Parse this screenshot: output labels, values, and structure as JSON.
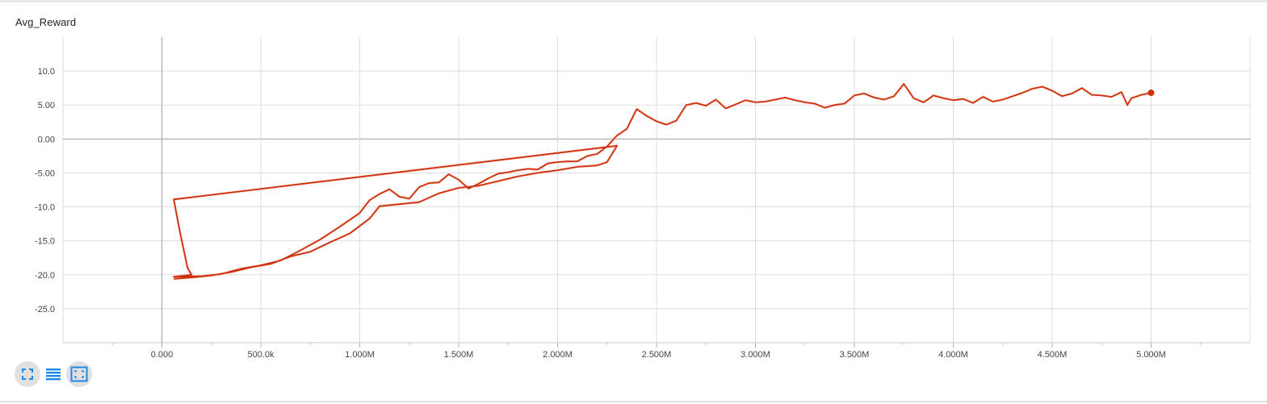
{
  "title": "Avg_Reward",
  "colors": {
    "series": "#d0310d",
    "series_raw": "#f3b6a8",
    "grid": "#dddddd",
    "axis": "#9e9e9e",
    "icon": "#1e88e5"
  },
  "toolbar": {
    "buttons": [
      {
        "name": "expand-chart-button",
        "icon": "fit-screen-icon",
        "active": true
      },
      {
        "name": "toggle-log-scale-button",
        "icon": "lines-icon",
        "active": false
      },
      {
        "name": "fit-domain-button",
        "icon": "fit-domain-icon",
        "active": true
      }
    ]
  },
  "chart_data": {
    "type": "line",
    "title": "Avg_Reward",
    "xlabel": "",
    "ylabel": "",
    "xlim": [
      -500000,
      5500000
    ],
    "ylim": [
      -30,
      15
    ],
    "grid": true,
    "legend": "none",
    "x_ticks": [
      0,
      500000,
      1000000,
      1500000,
      2000000,
      2500000,
      3000000,
      3500000,
      4000000,
      4500000,
      5000000
    ],
    "x_tick_labels": [
      "0.000",
      "500.0k",
      "1.000M",
      "1.500M",
      "2.000M",
      "2.500M",
      "3.000M",
      "3.500M",
      "4.000M",
      "4.500M",
      "5.000M"
    ],
    "y_ticks": [
      10,
      5,
      0,
      -5,
      -10,
      -15,
      -20,
      -25
    ],
    "y_tick_labels": [
      "10.0",
      "5.00",
      "0.00",
      "-5.00",
      "-10.0",
      "-15.0",
      "-20.0",
      "-25.0"
    ],
    "series": [
      {
        "points": [
          [
            60000,
            -20.6
          ],
          [
            150000,
            -20.4
          ],
          [
            250000,
            -20.1
          ],
          [
            350000,
            -19.6
          ],
          [
            450000,
            -18.9
          ],
          [
            550000,
            -18.4
          ],
          [
            650000,
            -17.3
          ],
          [
            750000,
            -16.6
          ],
          [
            850000,
            -15.2
          ],
          [
            950000,
            -13.9
          ],
          [
            1050000,
            -11.7
          ],
          [
            1100000,
            -9.9
          ],
          [
            1200000,
            -9.6
          ],
          [
            1300000,
            -9.3
          ],
          [
            1400000,
            -8.0
          ],
          [
            1500000,
            -7.2
          ],
          [
            1600000,
            -6.9
          ],
          [
            1700000,
            -6.2
          ],
          [
            1800000,
            -5.5
          ],
          [
            1900000,
            -5.0
          ],
          [
            2000000,
            -4.6
          ],
          [
            2100000,
            -4.1
          ],
          [
            2200000,
            -3.9
          ],
          [
            2250000,
            -3.4
          ],
          [
            2300000,
            -1.0
          ],
          [
            60000,
            -8.9
          ],
          [
            90000,
            -13.5
          ],
          [
            130000,
            -19.0
          ],
          [
            150000,
            -20.0
          ],
          [
            60000,
            -20.3
          ],
          [
            200000,
            -20.2
          ],
          [
            300000,
            -19.9
          ],
          [
            400000,
            -19.1
          ],
          [
            500000,
            -18.6
          ],
          [
            600000,
            -17.9
          ],
          [
            700000,
            -16.4
          ],
          [
            800000,
            -14.8
          ],
          [
            900000,
            -12.9
          ],
          [
            1000000,
            -10.9
          ],
          [
            1050000,
            -9.0
          ],
          [
            1100000,
            -8.1
          ],
          [
            1150000,
            -7.4
          ],
          [
            1200000,
            -8.5
          ],
          [
            1250000,
            -8.8
          ],
          [
            1300000,
            -7.1
          ],
          [
            1350000,
            -6.5
          ],
          [
            1400000,
            -6.4
          ],
          [
            1450000,
            -5.2
          ],
          [
            1500000,
            -6.0
          ],
          [
            1550000,
            -7.3
          ],
          [
            1600000,
            -6.6
          ],
          [
            1650000,
            -5.8
          ],
          [
            1700000,
            -5.1
          ],
          [
            1750000,
            -4.9
          ],
          [
            1800000,
            -4.6
          ],
          [
            1850000,
            -4.4
          ],
          [
            1900000,
            -4.5
          ],
          [
            1950000,
            -3.6
          ],
          [
            2000000,
            -3.4
          ],
          [
            2050000,
            -3.3
          ],
          [
            2100000,
            -3.3
          ],
          [
            2150000,
            -2.5
          ],
          [
            2200000,
            -2.2
          ],
          [
            2250000,
            -1.1
          ],
          [
            2300000,
            0.5
          ],
          [
            2350000,
            1.5
          ],
          [
            2400000,
            4.4
          ],
          [
            2450000,
            3.4
          ],
          [
            2500000,
            2.6
          ],
          [
            2550000,
            2.1
          ],
          [
            2600000,
            2.7
          ],
          [
            2650000,
            5.0
          ],
          [
            2700000,
            5.3
          ],
          [
            2750000,
            4.9
          ],
          [
            2800000,
            5.8
          ],
          [
            2850000,
            4.5
          ],
          [
            2900000,
            5.1
          ],
          [
            2950000,
            5.7
          ],
          [
            3000000,
            5.4
          ],
          [
            3050000,
            5.5
          ],
          [
            3100000,
            5.8
          ],
          [
            3150000,
            6.1
          ],
          [
            3200000,
            5.7
          ],
          [
            3250000,
            5.4
          ],
          [
            3300000,
            5.2
          ],
          [
            3350000,
            4.6
          ],
          [
            3400000,
            5.0
          ],
          [
            3450000,
            5.2
          ],
          [
            3500000,
            6.4
          ],
          [
            3550000,
            6.7
          ],
          [
            3600000,
            6.1
          ],
          [
            3650000,
            5.8
          ],
          [
            3700000,
            6.3
          ],
          [
            3750000,
            8.1
          ],
          [
            3800000,
            6.0
          ],
          [
            3850000,
            5.4
          ],
          [
            3900000,
            6.4
          ],
          [
            3950000,
            6.0
          ],
          [
            4000000,
            5.7
          ],
          [
            4050000,
            5.9
          ],
          [
            4100000,
            5.3
          ],
          [
            4150000,
            6.2
          ],
          [
            4200000,
            5.5
          ],
          [
            4250000,
            5.8
          ],
          [
            4300000,
            6.3
          ],
          [
            4350000,
            6.8
          ],
          [
            4400000,
            7.4
          ],
          [
            4450000,
            7.7
          ],
          [
            4500000,
            7.1
          ],
          [
            4550000,
            6.3
          ],
          [
            4600000,
            6.7
          ],
          [
            4650000,
            7.5
          ],
          [
            4700000,
            6.5
          ],
          [
            4750000,
            6.4
          ],
          [
            4800000,
            6.2
          ],
          [
            4850000,
            6.9
          ],
          [
            4880000,
            5.0
          ],
          [
            4900000,
            6.0
          ],
          [
            4950000,
            6.5
          ],
          [
            5000000,
            6.8
          ]
        ]
      }
    ]
  }
}
